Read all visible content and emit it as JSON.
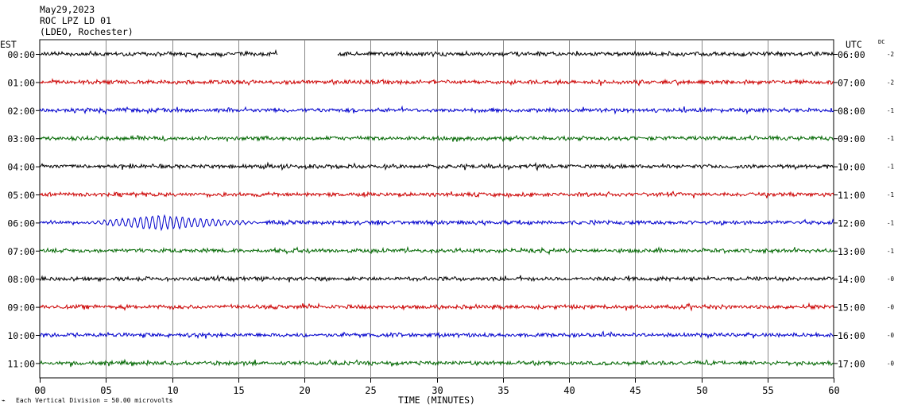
{
  "header": {
    "date": "May29,2023",
    "station": "ROC LPZ LD 01",
    "network": "(LDEO, Rochester)"
  },
  "left_zone": "EST",
  "right_zone": "UTC",
  "dc_label": "DC",
  "footer": {
    "scale_note": "Each Vertical Division =   50.00 microvolts"
  },
  "chart_data": {
    "type": "line",
    "title": "",
    "xlabel": "TIME (MINUTES)",
    "xlim": [
      0,
      60
    ],
    "x_ticks": [
      "00",
      "05",
      "10",
      "15",
      "20",
      "25",
      "30",
      "35",
      "40",
      "45",
      "50",
      "55",
      "60"
    ],
    "grid": true,
    "trace_colors": [
      "#000000",
      "#cc0000",
      "#0000cc",
      "#006600"
    ],
    "rows": [
      {
        "est": "00:00",
        "utc": "06:00",
        "dc": "-2",
        "gap": [
          18.0,
          22.5
        ]
      },
      {
        "est": "01:00",
        "utc": "07:00",
        "dc": "-2"
      },
      {
        "est": "02:00",
        "utc": "08:00",
        "dc": "-1"
      },
      {
        "est": "03:00",
        "utc": "09:00",
        "dc": "-1"
      },
      {
        "est": "04:00",
        "utc": "10:00",
        "dc": "-1"
      },
      {
        "est": "05:00",
        "utc": "11:00",
        "dc": "-1"
      },
      {
        "est": "06:00",
        "utc": "12:00",
        "dc": "-1",
        "event": {
          "start": 3.0,
          "peak": 9.0,
          "end": 17.0
        }
      },
      {
        "est": "07:00",
        "utc": "13:00",
        "dc": "-1"
      },
      {
        "est": "08:00",
        "utc": "14:00",
        "dc": "-0"
      },
      {
        "est": "09:00",
        "utc": "15:00",
        "dc": "-0"
      },
      {
        "est": "10:00",
        "utc": "16:00",
        "dc": "-0"
      },
      {
        "est": "11:00",
        "utc": "17:00",
        "dc": "-0"
      }
    ]
  }
}
